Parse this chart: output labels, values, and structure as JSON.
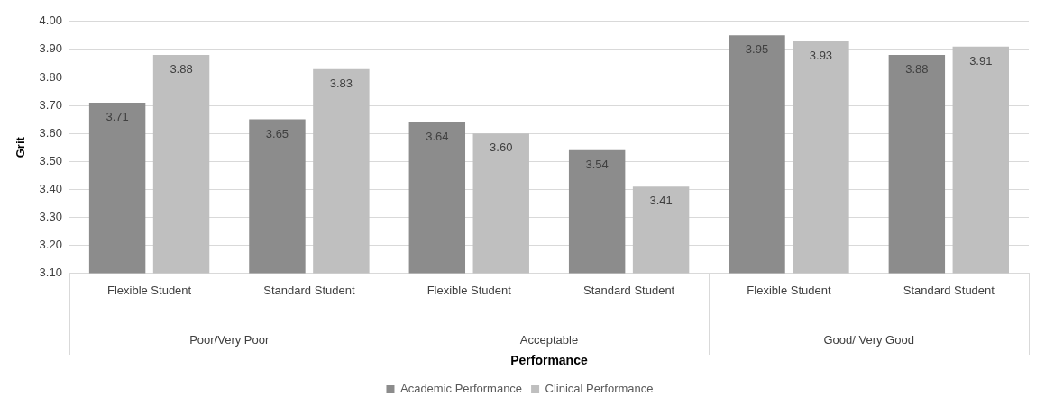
{
  "chart_data": {
    "type": "bar",
    "xlabel": "Performance",
    "ylabel": "Grit",
    "categories": [
      "Flexible Student",
      "Standard Student",
      "Flexible Student",
      "Standard Student",
      "Flexible Student",
      "Standard Student"
    ],
    "annotations": [
      "Poor/Very Poor",
      "Acceptable",
      "Good/ Very Good"
    ],
    "series": [
      {
        "name": "Academic Performance",
        "color": "#8c8c8c",
        "values": [
          3.71,
          3.65,
          3.64,
          3.54,
          3.95,
          3.88
        ],
        "value_labels": [
          "3.71",
          "3.65",
          "3.64",
          "3.54",
          "3.95",
          "3.88"
        ]
      },
      {
        "name": "Clinical Performance",
        "color": "#bfbfbf",
        "values": [
          3.88,
          3.83,
          3.6,
          3.41,
          3.93,
          3.91
        ],
        "value_labels": [
          "3.88",
          "3.83",
          "3.60",
          "3.41",
          "3.93",
          "3.91"
        ]
      }
    ],
    "ylim": [
      3.1,
      4.0
    ],
    "yticks": [
      {
        "value": 3.1,
        "label": "3.10"
      },
      {
        "value": 3.2,
        "label": "3.20"
      },
      {
        "value": 3.3,
        "label": "3.30"
      },
      {
        "value": 3.4,
        "label": "3.40"
      },
      {
        "value": 3.5,
        "label": "3.50"
      },
      {
        "value": 3.6,
        "label": "3.60"
      },
      {
        "value": 3.7,
        "label": "3.70"
      },
      {
        "value": 3.8,
        "label": "3.80"
      },
      {
        "value": 3.9,
        "label": "3.90"
      },
      {
        "value": 4.0,
        "label": "4.00"
      }
    ],
    "grid": "y",
    "legend": "bottom"
  }
}
